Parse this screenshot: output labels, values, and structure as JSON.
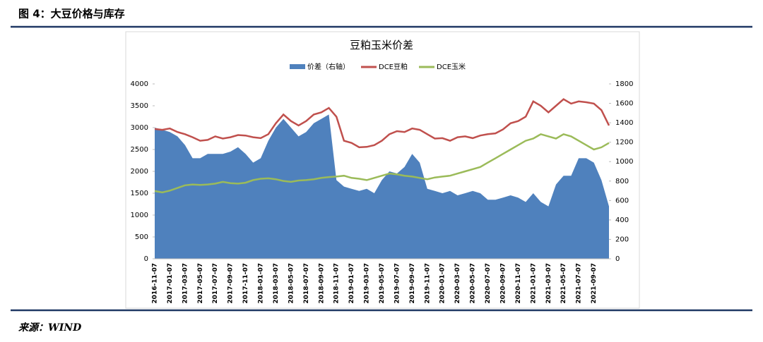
{
  "header": {
    "title": "图 4：大豆价格与库存"
  },
  "source": "来源：WIND",
  "chart_data": {
    "type": "combo",
    "title": "豆粕玉米价差",
    "categories": [
      "2016-11-07",
      null,
      "2017-01-07",
      null,
      "2017-03-07",
      null,
      "2017-05-07",
      null,
      "2017-07-07",
      null,
      "2017-09-07",
      null,
      "2017-11-07",
      null,
      "2018-01-07",
      null,
      "2018-03-07",
      null,
      "2018-05-07",
      null,
      "2018-07-07",
      null,
      "2018-09-07",
      null,
      "2018-11-07",
      null,
      "2019-01-07",
      null,
      "2019-03-07",
      null,
      "2019-05-07",
      null,
      "2019-07-07",
      null,
      "2019-09-07",
      null,
      "2019-11-07",
      null,
      "2020-01-07",
      null,
      "2020-03-07",
      null,
      "2020-05-07",
      null,
      "2020-07-07",
      null,
      "2020-09-07",
      null,
      "2020-11-07",
      null,
      "2021-01-07",
      null,
      "2021-03-07",
      null,
      "2021-05-07",
      null,
      "2021-07-07",
      null,
      "2021-09-07",
      null,
      null
    ],
    "series": [
      {
        "name": "价差（右轴）",
        "kind": "area",
        "axis": "y2",
        "color": "#4f81bd",
        "values": [
          1350,
          1328,
          1305,
          1260,
          1170,
          1035,
          1035,
          1080,
          1080,
          1080,
          1103,
          1148,
          1080,
          990,
          1035,
          1215,
          1350,
          1440,
          1350,
          1260,
          1305,
          1395,
          1440,
          1485,
          810,
          743,
          720,
          698,
          720,
          675,
          810,
          900,
          878,
          945,
          1080,
          990,
          720,
          698,
          675,
          698,
          653,
          675,
          698,
          675,
          608,
          608,
          630,
          653,
          630,
          585,
          675,
          585,
          540,
          765,
          855,
          855,
          1035,
          1035,
          990,
          810,
          540
        ]
      },
      {
        "name": "DCE豆粕",
        "kind": "line",
        "color": "#c0504d",
        "values": [
          2970,
          2950,
          2980,
          2900,
          2850,
          2780,
          2700,
          2720,
          2800,
          2750,
          2780,
          2830,
          2820,
          2780,
          2760,
          2850,
          3100,
          3300,
          3150,
          3050,
          3150,
          3300,
          3350,
          3450,
          3250,
          2700,
          2650,
          2550,
          2560,
          2600,
          2700,
          2850,
          2920,
          2900,
          2980,
          2950,
          2850,
          2750,
          2760,
          2700,
          2780,
          2800,
          2760,
          2820,
          2850,
          2870,
          2960,
          3100,
          3150,
          3250,
          3600,
          3500,
          3350,
          3500,
          3650,
          3550,
          3600,
          3580,
          3550,
          3400,
          3050
        ]
      },
      {
        "name": "DCE玉米",
        "kind": "line",
        "color": "#9bbb59",
        "values": [
          1550,
          1520,
          1560,
          1620,
          1680,
          1700,
          1690,
          1700,
          1720,
          1760,
          1730,
          1720,
          1740,
          1800,
          1830,
          1840,
          1820,
          1780,
          1760,
          1790,
          1800,
          1820,
          1850,
          1870,
          1880,
          1900,
          1850,
          1830,
          1800,
          1850,
          1900,
          1950,
          1930,
          1900,
          1880,
          1850,
          1820,
          1860,
          1880,
          1900,
          1950,
          2000,
          2050,
          2100,
          2200,
          2300,
          2400,
          2500,
          2600,
          2700,
          2750,
          2850,
          2800,
          2750,
          2850,
          2800,
          2700,
          2600,
          2500,
          2550,
          2650
        ]
      }
    ],
    "ylim": [
      0,
      4000
    ],
    "yticks": [
      0,
      500,
      1000,
      1500,
      2000,
      2500,
      3000,
      3500,
      4000
    ],
    "y2lim": [
      0,
      1800
    ],
    "y2ticks": [
      0,
      200,
      400,
      600,
      800,
      1000,
      1200,
      1400,
      1600,
      1800
    ],
    "grid": false,
    "legend": "top"
  }
}
